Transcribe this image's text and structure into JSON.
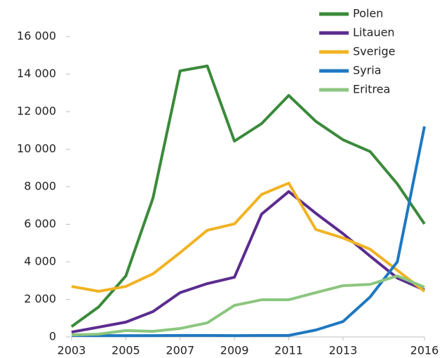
{
  "chart_data": {
    "type": "line",
    "x": [
      2003,
      2004,
      2005,
      2006,
      2007,
      2008,
      2009,
      2010,
      2011,
      2012,
      2013,
      2014,
      2015,
      2016
    ],
    "series": [
      {
        "name": "Polen",
        "color": "#3a8a3a",
        "values": [
          550,
          1600,
          3250,
          7400,
          14170,
          14430,
          10430,
          11360,
          12860,
          11480,
          10500,
          9870,
          8150,
          6020
        ]
      },
      {
        "name": "Litauen",
        "color": "#5b2c8f",
        "values": [
          260,
          520,
          790,
          1350,
          2360,
          2840,
          3180,
          6540,
          7740,
          6580,
          5500,
          4300,
          3140,
          2500
        ]
      },
      {
        "name": "Sverige",
        "color": "#f0b323",
        "values": [
          2690,
          2430,
          2690,
          3360,
          4490,
          5680,
          6020,
          7590,
          8190,
          5720,
          5270,
          4670,
          3550,
          2430
        ]
      },
      {
        "name": "Syria",
        "color": "#1f78c1",
        "values": [
          80,
          70,
          70,
          70,
          80,
          80,
          70,
          80,
          80,
          370,
          820,
          2130,
          4000,
          11210
        ]
      },
      {
        "name": "Eritrea",
        "color": "#8cc67f",
        "values": [
          110,
          150,
          340,
          300,
          450,
          750,
          1680,
          1980,
          1980,
          2360,
          2730,
          2800,
          3250,
          2650
        ]
      }
    ],
    "xlim": [
      2003,
      2016
    ],
    "xticks": [
      2003,
      2005,
      2007,
      2009,
      2011,
      2013,
      2016
    ],
    "ylim": [
      0,
      16000
    ],
    "yticks": [
      0,
      {
        "value": 2000,
        "label": "2 000"
      },
      {
        "value": 4000,
        "label": "4 000"
      },
      {
        "value": 6000,
        "label": "6 000"
      },
      {
        "value": 8000,
        "label": "8 000"
      },
      {
        "value": 10000,
        "label": "10 000"
      },
      {
        "value": 12000,
        "label": "12 000"
      },
      {
        "value": 14000,
        "label": "14 000"
      },
      {
        "value": 16000,
        "label": "16 000"
      }
    ],
    "legend": "top-right",
    "grid": false
  }
}
